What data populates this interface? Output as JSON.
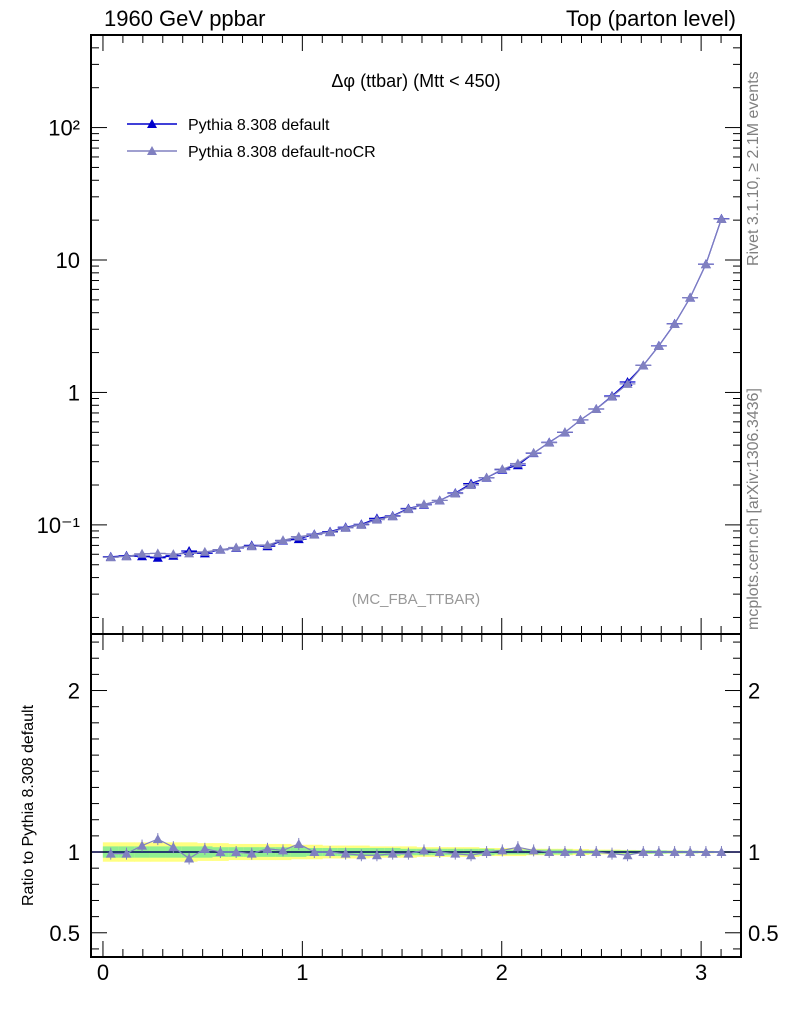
{
  "header": {
    "left": "1960 GeV ppbar",
    "right": "Top (parton level)"
  },
  "side": {
    "rivet": "Rivet 3.1.10, ≥ 2.1M events",
    "mcplots": "mcplots.cern.ch [arXiv:1306.3436]"
  },
  "ratio_ylabel": "Ratio to Pythia 8.308 default",
  "chart_data": [
    {
      "type": "line",
      "title": "Δφ (ttbar) (Mtt < 450)",
      "analysis_tag": "(MC_FBA_TTBAR)",
      "xlabel": "",
      "ylabel": "",
      "xlim": [
        -0.06,
        3.2
      ],
      "ylim": [
        0.015,
        500
      ],
      "yscale": "log",
      "x_ticks": [
        "0",
        "1",
        "2",
        "3"
      ],
      "y_ticks": [
        "10⁻¹",
        "1",
        "10",
        "10²"
      ],
      "legend_position": "top-left",
      "x": [
        0.039,
        0.118,
        0.196,
        0.275,
        0.353,
        0.432,
        0.511,
        0.589,
        0.668,
        0.746,
        0.825,
        0.903,
        0.982,
        1.06,
        1.139,
        1.217,
        1.296,
        1.374,
        1.453,
        1.532,
        1.61,
        1.689,
        1.767,
        1.846,
        1.924,
        2.003,
        2.081,
        2.16,
        2.238,
        2.317,
        2.395,
        2.474,
        2.553,
        2.631,
        2.71,
        2.788,
        2.867,
        2.945,
        3.024,
        3.102
      ],
      "series": [
        {
          "name": "Pythia 8.308 default",
          "color": "#0000cc",
          "marker": "filled-triangle",
          "values": [
            0.0575,
            0.0585,
            0.058,
            0.0565,
            0.0585,
            0.0635,
            0.061,
            0.065,
            0.067,
            0.07,
            0.069,
            0.076,
            0.078,
            0.085,
            0.089,
            0.096,
            0.101,
            0.112,
            0.117,
            0.133,
            0.142,
            0.153,
            0.174,
            0.205,
            0.227,
            0.261,
            0.282,
            0.348,
            0.42,
            0.5,
            0.62,
            0.75,
            0.94,
            1.2,
            1.6,
            2.25,
            3.3,
            5.2,
            9.3,
            20.5
          ]
        },
        {
          "name": "Pythia 8.308 default-noCR",
          "color": "#8080c0",
          "marker": "filled-triangle",
          "values": [
            0.057,
            0.0578,
            0.0605,
            0.061,
            0.0602,
            0.061,
            0.0626,
            0.065,
            0.0675,
            0.069,
            0.0705,
            0.0765,
            0.0815,
            0.0845,
            0.088,
            0.095,
            0.1,
            0.1095,
            0.116,
            0.1315,
            0.143,
            0.153,
            0.1725,
            0.2,
            0.2275,
            0.2635,
            0.2905,
            0.35,
            0.418,
            0.501,
            0.62,
            0.75,
            0.93,
            1.16,
            1.6,
            2.24,
            3.29,
            5.2,
            9.28,
            20.4
          ]
        }
      ]
    },
    {
      "type": "line",
      "title": "",
      "xlabel": "",
      "ylabel": "Ratio to Pythia 8.308 default",
      "xlim": [
        -0.06,
        3.2
      ],
      "ylim": [
        0.35,
        2.35
      ],
      "x_ticks": [
        "0",
        "1",
        "2",
        "3"
      ],
      "y_ticks": [
        "0.5",
        "1",
        "2"
      ],
      "band_colors": {
        "inner": "#90ee90",
        "outer": "#ffff80"
      },
      "x": [
        0.039,
        0.118,
        0.196,
        0.275,
        0.353,
        0.432,
        0.511,
        0.589,
        0.668,
        0.746,
        0.825,
        0.903,
        0.982,
        1.06,
        1.139,
        1.217,
        1.296,
        1.374,
        1.453,
        1.532,
        1.61,
        1.689,
        1.767,
        1.846,
        1.924,
        2.003,
        2.081,
        2.16,
        2.238,
        2.317,
        2.395,
        2.474,
        2.553,
        2.631,
        2.71,
        2.788,
        2.867,
        2.945,
        3.024,
        3.102
      ],
      "series": [
        {
          "name": "Pythia 8.308 default-noCR",
          "color": "#8080c0",
          "values": [
            0.99,
            0.99,
            1.04,
            1.08,
            1.03,
            0.96,
            1.02,
            1.0,
            1.0,
            0.99,
            1.02,
            1.01,
            1.05,
            1.0,
            1.0,
            0.99,
            0.98,
            0.98,
            0.99,
            0.99,
            1.01,
            1.0,
            0.99,
            0.98,
            1.0,
            1.01,
            1.03,
            1.01,
            1.0,
            1.0,
            1.0,
            1.0,
            0.99,
            0.98,
            1.0,
            1.0,
            1.0,
            1.0,
            1.0,
            1.0
          ],
          "band_inner": [
            0.035,
            0.035,
            0.035,
            0.035,
            0.035,
            0.035,
            0.035,
            0.03,
            0.03,
            0.03,
            0.03,
            0.03,
            0.03,
            0.025,
            0.025,
            0.025,
            0.025,
            0.025,
            0.025,
            0.02,
            0.02,
            0.02,
            0.02,
            0.02,
            0.02,
            0.015,
            0.015,
            0.015,
            0.015,
            0.015,
            0.01,
            0.01,
            0.01,
            0.01,
            0.01,
            0.01,
            0.008,
            0.008,
            0.006,
            0.005
          ],
          "band_outer": [
            0.06,
            0.06,
            0.06,
            0.06,
            0.06,
            0.06,
            0.055,
            0.055,
            0.05,
            0.05,
            0.05,
            0.05,
            0.045,
            0.045,
            0.04,
            0.04,
            0.04,
            0.035,
            0.035,
            0.035,
            0.03,
            0.03,
            0.03,
            0.03,
            0.025,
            0.025,
            0.025,
            0.02,
            0.02,
            0.02,
            0.018,
            0.015,
            0.015,
            0.013,
            0.012,
            0.01,
            0.01,
            0.008,
            0.008,
            0.006
          ]
        }
      ]
    }
  ]
}
